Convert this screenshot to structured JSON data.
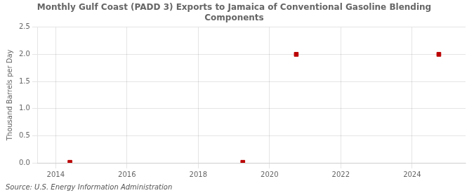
{
  "chart_data": {
    "type": "scatter",
    "title": "Monthly Gulf Coast (PADD 3) Exports to Jamaica of Conventional Gasoline Blending\nComponents",
    "ylabel": "Thousand Barrels per Day",
    "annotations": [
      "Source: U.S. Energy Information Administration"
    ],
    "x": [
      2014.4,
      2019.25,
      2020.75,
      2024.75
    ],
    "values": [
      0.01,
      0.01,
      2.0,
      2.0
    ],
    "color": "#bb0000",
    "marker": "square",
    "xlim": [
      2013.5,
      2025.5
    ],
    "xticks": [
      2014,
      2016,
      2018,
      2020,
      2022,
      2024
    ],
    "ylim": [
      0.0,
      2.5
    ],
    "yticks": [
      {
        "value": 0.0,
        "label": "0.0"
      },
      {
        "value": 0.5,
        "label": "0.5"
      },
      {
        "value": 1.0,
        "label": "1.0"
      },
      {
        "value": 1.5,
        "label": "1.5"
      },
      {
        "value": 2.0,
        "label": "2.0"
      },
      {
        "value": 2.5,
        "label": "2.5"
      }
    ],
    "grid": true
  }
}
